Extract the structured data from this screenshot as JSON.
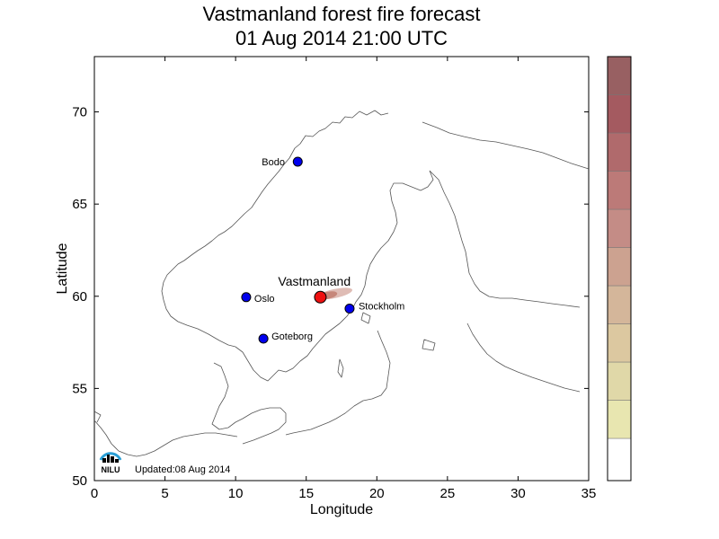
{
  "title": {
    "line1": "Vastmanland forest fire forecast",
    "line2": "01 Aug 2014 21:00 UTC"
  },
  "axes": {
    "xlabel": "Longitude",
    "ylabel": "Latitude",
    "xlim": [
      0,
      35
    ],
    "ylim": [
      50,
      73
    ],
    "xticks": [
      0,
      5,
      10,
      15,
      20,
      25,
      30,
      35
    ],
    "yticks": [
      50,
      55,
      60,
      65,
      70
    ]
  },
  "cities": [
    {
      "name": "Bodo",
      "lon": 14.4,
      "lat": 67.3
    },
    {
      "name": "Oslo",
      "lon": 10.75,
      "lat": 59.95
    },
    {
      "name": "Goteborg",
      "lon": 11.97,
      "lat": 57.7
    },
    {
      "name": "Stockholm",
      "lon": 18.07,
      "lat": 59.33
    }
  ],
  "fire": {
    "name": "Vastmanland",
    "lon": 16.0,
    "lat": 59.95,
    "color": "#ee1111"
  },
  "plume_color": "#b86a5a",
  "colorbar_colors": [
    "#ffffff",
    "#e8e6b0",
    "#e0d8a8",
    "#dcc8a0",
    "#d4b69a",
    "#cca290",
    "#c48c86",
    "#bc7a78",
    "#b06a6c",
    "#a45a60",
    "#986062"
  ],
  "updated": "Updated:08 Aug 2014",
  "logo_text": "NILU"
}
